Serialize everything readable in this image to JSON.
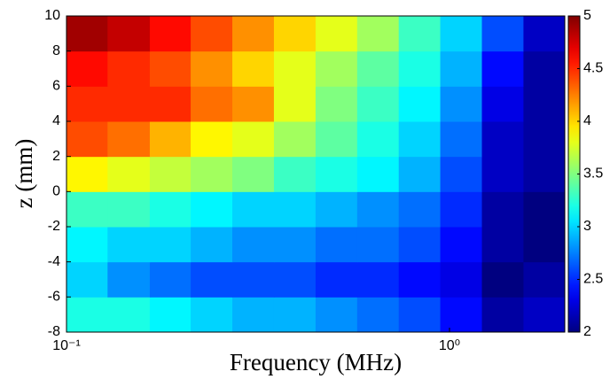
{
  "chart_data": {
    "type": "heatmap",
    "xlabel": "Frequency (MHz)",
    "ylabel": "z (mm)",
    "xscale": "log",
    "colormap": "jet",
    "x_bins": [
      0.1,
      0.128,
      0.165,
      0.211,
      0.271,
      0.348,
      0.447,
      0.574,
      0.737,
      0.946,
      1.215,
      1.56,
      2
    ],
    "y_bins": [
      -8,
      -6,
      -4,
      -2,
      0,
      2,
      4,
      6,
      8,
      10
    ],
    "values": [
      [
        3.2,
        3.2,
        3.1,
        3.0,
        2.9,
        2.9,
        2.8,
        2.7,
        2.6,
        2.4,
        2.1,
        2.2
      ],
      [
        3.0,
        2.8,
        2.7,
        2.6,
        2.6,
        2.6,
        2.5,
        2.5,
        2.4,
        2.3,
        2.0,
        2.1
      ],
      [
        3.1,
        3.0,
        3.0,
        2.9,
        2.8,
        2.8,
        2.7,
        2.7,
        2.6,
        2.4,
        2.1,
        2.0
      ],
      [
        3.3,
        3.3,
        3.2,
        3.1,
        3.0,
        3.0,
        2.9,
        2.8,
        2.7,
        2.5,
        2.1,
        2.0
      ],
      [
        3.9,
        3.8,
        3.7,
        3.6,
        3.5,
        3.3,
        3.2,
        3.1,
        2.9,
        2.6,
        2.2,
        2.1
      ],
      [
        4.4,
        4.3,
        4.1,
        3.9,
        3.8,
        3.6,
        3.4,
        3.2,
        3.0,
        2.7,
        2.2,
        2.1
      ],
      [
        4.5,
        4.5,
        4.5,
        4.3,
        4.2,
        3.8,
        3.5,
        3.3,
        3.1,
        2.8,
        2.3,
        2.1
      ],
      [
        4.6,
        4.5,
        4.4,
        4.2,
        4.0,
        3.8,
        3.6,
        3.4,
        3.2,
        2.9,
        2.4,
        2.1
      ],
      [
        4.9,
        4.8,
        4.6,
        4.4,
        4.2,
        4.0,
        3.8,
        3.6,
        3.3,
        3.0,
        2.6,
        2.2
      ]
    ],
    "xlim": [
      0.1,
      2
    ],
    "xticks": [
      {
        "value": 0.1,
        "label": "10⁻¹"
      },
      {
        "value": 1,
        "label": "10⁰"
      }
    ],
    "ylim": [
      -8,
      10
    ],
    "yticks": [
      -8,
      -6,
      -4,
      -2,
      0,
      2,
      4,
      6,
      8,
      10
    ],
    "clim": [
      2,
      5
    ],
    "cticks": [
      2,
      2.5,
      3,
      3.5,
      4,
      4.5,
      5
    ]
  }
}
